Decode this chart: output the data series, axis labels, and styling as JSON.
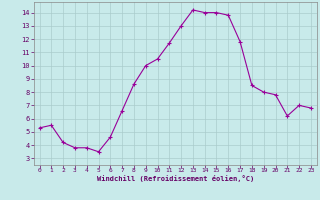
{
  "x": [
    0,
    1,
    2,
    3,
    4,
    5,
    6,
    7,
    8,
    9,
    10,
    11,
    12,
    13,
    14,
    15,
    16,
    17,
    18,
    19,
    20,
    21,
    22,
    23
  ],
  "y": [
    5.3,
    5.5,
    4.2,
    3.8,
    3.8,
    3.5,
    4.6,
    6.6,
    8.6,
    10.0,
    10.5,
    11.7,
    13.0,
    14.2,
    14.0,
    14.0,
    13.8,
    11.8,
    8.5,
    8.0,
    7.8,
    6.2,
    7.0,
    6.8
  ],
  "xlabel": "Windchill (Refroidissement éolien,°C)",
  "ylim": [
    2.5,
    14.8
  ],
  "xlim": [
    -0.5,
    23.5
  ],
  "yticks": [
    3,
    4,
    5,
    6,
    7,
    8,
    9,
    10,
    11,
    12,
    13,
    14
  ],
  "xticks": [
    0,
    1,
    2,
    3,
    4,
    5,
    6,
    7,
    8,
    9,
    10,
    11,
    12,
    13,
    14,
    15,
    16,
    17,
    18,
    19,
    20,
    21,
    22,
    23
  ],
  "line_color": "#990099",
  "marker_color": "#990099",
  "bg_color": "#c8eaea",
  "grid_color": "#aacccc",
  "label_color": "#660066",
  "tick_color": "#660066"
}
